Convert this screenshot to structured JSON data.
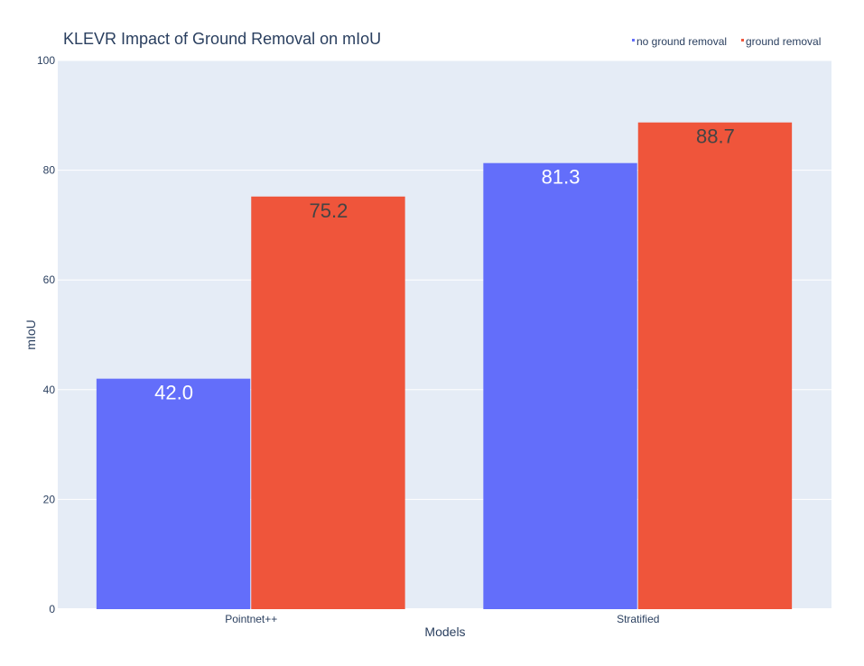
{
  "chart_data": {
    "type": "bar",
    "title": "KLEVR Impact of Ground Removal on mIoU",
    "xlabel": "Models",
    "ylabel": "mIoU",
    "ylim": [
      0,
      100
    ],
    "yticks": [
      0,
      20,
      40,
      60,
      80,
      100
    ],
    "grid": true,
    "legend_position": "top-right",
    "categories": [
      "Pointnet++",
      "Stratified"
    ],
    "series": [
      {
        "name": "no ground removal",
        "values": [
          42.0,
          81.3
        ],
        "labels": [
          "42.0",
          "81.3"
        ],
        "color": "#636efa",
        "label_color": "#ffffff"
      },
      {
        "name": "ground removal",
        "values": [
          75.2,
          88.7
        ],
        "labels": [
          "75.2",
          "88.7"
        ],
        "color": "#ef553b",
        "label_color": "#444444"
      }
    ],
    "colors": {
      "plot_background": "#e5ecf6",
      "grid": "#ffffff",
      "title": "#2a3f5f",
      "axis_text": "#2a3f5f"
    }
  }
}
